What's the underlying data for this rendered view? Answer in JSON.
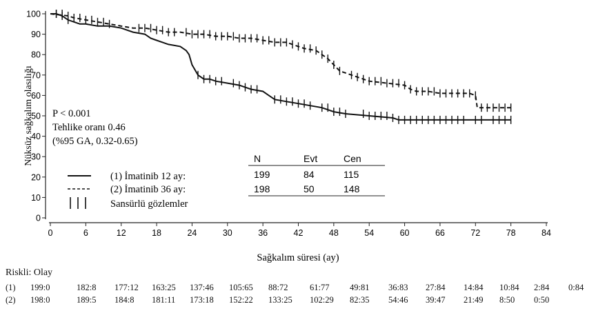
{
  "chart_data": {
    "type": "line",
    "ylabel": "Nüksüz sağkalım olasılığı",
    "xlabel": "Sağkalım süresi (ay)",
    "xlim": [
      0,
      84
    ],
    "ylim": [
      0,
      100
    ],
    "xticks": [
      0,
      6,
      12,
      18,
      24,
      30,
      36,
      42,
      48,
      54,
      60,
      66,
      72,
      78,
      84
    ],
    "yticks": [
      0,
      10,
      20,
      30,
      40,
      50,
      60,
      70,
      80,
      90,
      100
    ],
    "grid": false,
    "annotations": [
      "P < 0.001",
      "Tehlike oranı 0.46",
      "(%95 GA, 0.32-0.65)"
    ],
    "legend": {
      "placement": "bottom-left",
      "entries": [
        {
          "symbol": "—",
          "label": "(1) İmatinib 12 ay:"
        },
        {
          "symbol": "-----",
          "label": "(2) İmatinib 36 ay:"
        },
        {
          "symbol": "| | |",
          "label": "Sansürlü gözlemler"
        }
      ]
    },
    "table": {
      "headers": [
        "N",
        "Evt",
        "Cen"
      ],
      "rows": [
        [
          "199",
          "84",
          "115"
        ],
        [
          "198",
          "50",
          "148"
        ]
      ]
    },
    "series": [
      {
        "style": "solid",
        "points": [
          [
            0,
            100
          ],
          [
            1,
            100
          ],
          [
            2,
            99
          ],
          [
            3,
            97
          ],
          [
            4,
            96
          ],
          [
            5,
            95
          ],
          [
            6,
            95
          ],
          [
            8,
            94
          ],
          [
            10,
            94
          ],
          [
            12,
            93
          ],
          [
            13,
            92
          ],
          [
            14,
            91
          ],
          [
            16,
            90
          ],
          [
            17,
            88
          ],
          [
            18,
            87
          ],
          [
            19,
            86
          ],
          [
            20,
            85
          ],
          [
            22,
            84
          ],
          [
            23,
            82
          ],
          [
            23.5,
            80
          ],
          [
            24,
            75
          ],
          [
            25,
            70
          ],
          [
            26,
            68
          ],
          [
            27,
            68
          ],
          [
            28,
            67
          ],
          [
            30,
            66
          ],
          [
            32,
            65
          ],
          [
            33,
            64
          ],
          [
            34,
            63
          ],
          [
            36,
            62
          ],
          [
            37,
            60
          ],
          [
            38,
            58
          ],
          [
            40,
            57
          ],
          [
            42,
            56
          ],
          [
            44,
            55
          ],
          [
            46,
            54
          ],
          [
            48,
            52
          ],
          [
            50,
            51
          ],
          [
            54,
            50
          ],
          [
            58,
            49
          ],
          [
            59,
            48
          ],
          [
            78,
            48
          ]
        ],
        "censored_x": [
          1,
          2,
          3,
          25,
          26,
          27,
          28,
          29,
          31,
          32,
          33,
          34,
          35,
          38,
          39,
          40,
          41,
          42,
          43,
          44,
          46,
          47,
          48,
          49,
          50,
          53,
          54,
          55,
          56,
          57,
          58,
          59,
          60,
          61,
          62,
          63,
          64,
          65,
          66,
          67,
          68,
          69,
          70,
          72,
          73,
          75,
          76,
          77,
          78
        ]
      },
      {
        "style": "dashed",
        "points": [
          [
            0,
            100
          ],
          [
            3,
            99
          ],
          [
            4,
            98
          ],
          [
            6,
            97
          ],
          [
            8,
            96
          ],
          [
            10,
            95
          ],
          [
            12,
            94
          ],
          [
            14,
            93
          ],
          [
            16,
            93
          ],
          [
            18,
            92
          ],
          [
            20,
            91
          ],
          [
            22,
            91
          ],
          [
            24,
            90
          ],
          [
            26,
            90
          ],
          [
            28,
            89
          ],
          [
            30,
            89
          ],
          [
            32,
            88
          ],
          [
            34,
            88
          ],
          [
            36,
            87
          ],
          [
            38,
            86
          ],
          [
            40,
            86
          ],
          [
            41,
            85
          ],
          [
            42,
            84
          ],
          [
            43,
            83
          ],
          [
            45,
            82
          ],
          [
            46,
            80
          ],
          [
            47,
            78
          ],
          [
            48,
            75
          ],
          [
            49,
            72
          ],
          [
            50,
            71
          ],
          [
            51,
            70
          ],
          [
            52,
            69
          ],
          [
            53,
            68
          ],
          [
            54,
            67
          ],
          [
            57,
            66
          ],
          [
            60,
            65
          ],
          [
            61,
            63
          ],
          [
            62,
            62
          ],
          [
            64,
            62
          ],
          [
            66,
            61
          ],
          [
            68,
            61
          ],
          [
            71,
            61
          ],
          [
            72,
            60
          ],
          [
            72.3,
            54
          ],
          [
            78,
            54
          ]
        ],
        "censored_x": [
          1,
          2,
          3,
          4,
          5,
          6,
          7,
          8,
          9,
          10,
          15,
          16,
          17,
          18,
          19,
          20,
          21,
          23,
          24,
          25,
          26,
          27,
          28,
          29,
          30,
          31,
          32,
          33,
          34,
          35,
          36,
          37,
          38,
          39,
          40,
          41,
          42,
          43,
          44,
          45,
          46,
          47,
          48,
          49,
          51,
          52,
          53,
          54,
          55,
          56,
          57,
          58,
          59,
          60,
          61,
          62,
          63,
          64,
          65,
          66,
          67,
          68,
          69,
          70,
          71,
          72,
          73,
          74,
          75,
          76,
          77,
          78
        ]
      }
    ]
  },
  "risk_table": {
    "title": "Riskli: Olay",
    "rows": [
      {
        "label": "(1)",
        "values": [
          "199:0",
          "182:8",
          "177:12",
          "163:25",
          "137:46",
          "105:65",
          "88:72",
          "61:77",
          "49:81",
          "36:83",
          "27:84",
          "14:84",
          "10:84",
          "2:84",
          "0:84"
        ]
      },
      {
        "label": "(2)",
        "values": [
          "198:0",
          "189:5",
          "184:8",
          "181:11",
          "173:18",
          "152:22",
          "133:25",
          "102:29",
          "82:35",
          "54:46",
          "39:47",
          "21:49",
          "8:50",
          "0:50"
        ]
      }
    ]
  }
}
